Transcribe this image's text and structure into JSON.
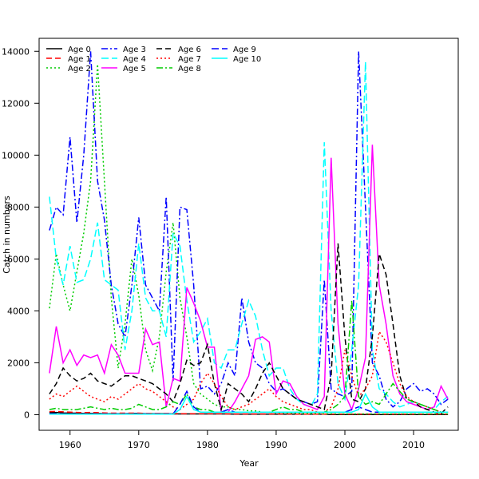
{
  "chart_data": {
    "type": "line",
    "xlabel": "Year",
    "ylabel": "Catch in numbers",
    "xlim": [
      1955.5,
      2016.5
    ],
    "ylim": [
      -600,
      14500
    ],
    "xticks": [
      1960,
      1970,
      1980,
      1990,
      2000,
      2010
    ],
    "yticks": [
      0,
      2000,
      4000,
      6000,
      8000,
      10000,
      12000,
      14000
    ],
    "legend_position": "top-left",
    "years": [
      1957,
      1958,
      1959,
      1960,
      1961,
      1962,
      1963,
      1964,
      1965,
      1966,
      1967,
      1968,
      1969,
      1970,
      1971,
      1972,
      1973,
      1974,
      1975,
      1976,
      1977,
      1978,
      1979,
      1980,
      1981,
      1982,
      1983,
      1984,
      1985,
      1986,
      1987,
      1988,
      1989,
      1990,
      1991,
      1992,
      1993,
      1994,
      1995,
      1996,
      1997,
      1998,
      1999,
      2000,
      2001,
      2002,
      2003,
      2004,
      2005,
      2006,
      2007,
      2008,
      2009,
      2010,
      2011,
      2012,
      2013,
      2014,
      2015
    ],
    "series": [
      {
        "name": "Age 0",
        "color": "#000000",
        "dash": "",
        "values": [
          80,
          90,
          70,
          60,
          60,
          50,
          50,
          50,
          40,
          40,
          40,
          40,
          50,
          50,
          40,
          40,
          40,
          40,
          30,
          30,
          30,
          30,
          30,
          30,
          30,
          30,
          30,
          20,
          20,
          20,
          20,
          20,
          20,
          20,
          20,
          20,
          20,
          20,
          20,
          20,
          20,
          10,
          10,
          10,
          10,
          10,
          10,
          10,
          10,
          10,
          10,
          10,
          10,
          10,
          10,
          10,
          10,
          10,
          10
        ]
      },
      {
        "name": "Age 1",
        "color": "#ff0000",
        "dash": "7,4",
        "values": [
          120,
          130,
          110,
          100,
          90,
          80,
          90,
          80,
          70,
          60,
          60,
          60,
          60,
          60,
          50,
          50,
          50,
          50,
          50,
          40,
          40,
          40,
          40,
          40,
          40,
          40,
          30,
          30,
          30,
          30,
          30,
          30,
          30,
          30,
          30,
          30,
          20,
          20,
          20,
          20,
          20,
          20,
          20,
          20,
          20,
          20,
          20,
          20,
          20,
          20,
          20,
          20,
          20,
          20,
          20,
          20,
          20,
          20,
          20
        ]
      },
      {
        "name": "Age 2",
        "color": "#00cc00",
        "dash": "2,3",
        "values": [
          4100,
          6200,
          5000,
          4000,
          5500,
          7000,
          9000,
          13500,
          9000,
          4500,
          1800,
          3500,
          6000,
          4600,
          2500,
          1700,
          3000,
          5500,
          7400,
          4500,
          3000,
          1200,
          800,
          600,
          400,
          300,
          300,
          200,
          200,
          150,
          150,
          100,
          100,
          80,
          80,
          60,
          60,
          50,
          50,
          50,
          40,
          40,
          30,
          30,
          30,
          30,
          30,
          30,
          30,
          30,
          30,
          30,
          30,
          30,
          30,
          30,
          30,
          30,
          30
        ]
      },
      {
        "name": "Age 3",
        "color": "#0000ff",
        "dash": "8,3,2,3",
        "values": [
          7100,
          8000,
          7700,
          10700,
          7400,
          10000,
          14000,
          9000,
          7500,
          5000,
          3500,
          3000,
          5000,
          7600,
          5000,
          4500,
          4000,
          8400,
          1300,
          8000,
          7900,
          5000,
          1000,
          1100,
          800,
          1200,
          2000,
          1500,
          4500,
          2800,
          2000,
          1800,
          1200,
          900,
          1000,
          800,
          600,
          500,
          400,
          500,
          5200,
          1000,
          800,
          700,
          900,
          14000,
          8000,
          2000,
          1500,
          600,
          300,
          500,
          1000,
          1200,
          900,
          1000,
          800,
          400,
          600
        ]
      },
      {
        "name": "Age 4",
        "color": "#00ffff",
        "dash": "9,4",
        "values": [
          8400,
          6000,
          5000,
          6500,
          5100,
          5200,
          6000,
          7400,
          5200,
          5000,
          4800,
          2500,
          4000,
          6600,
          4500,
          4000,
          4000,
          3000,
          7000,
          6500,
          4400,
          2800,
          3200,
          3700,
          2000,
          1800,
          2500,
          2500,
          3500,
          4400,
          3800,
          2500,
          1500,
          1800,
          1800,
          1000,
          600,
          400,
          300,
          800,
          10500,
          4000,
          1200,
          600,
          2500,
          5000,
          13600,
          2500,
          1000,
          800,
          500,
          300,
          400,
          500,
          400,
          300,
          200,
          500,
          700
        ]
      },
      {
        "name": "Age 5",
        "color": "#ff00ff",
        "dash": "",
        "values": [
          1600,
          3400,
          2000,
          2500,
          1900,
          2300,
          2200,
          2300,
          1600,
          2700,
          2300,
          1600,
          1600,
          1600,
          3300,
          2700,
          2800,
          300,
          1400,
          1300,
          4900,
          4300,
          3600,
          2600,
          2600,
          100,
          100,
          500,
          1000,
          1500,
          2900,
          3000,
          2800,
          800,
          1300,
          1200,
          700,
          400,
          300,
          200,
          700,
          9900,
          3500,
          800,
          200,
          1000,
          2200,
          10400,
          5000,
          3500,
          1500,
          800,
          500,
          400,
          300,
          200,
          300,
          1100,
          600
        ]
      },
      {
        "name": "Age 6",
        "color": "#000000",
        "dash": "7,4",
        "values": [
          800,
          1200,
          1800,
          1500,
          1300,
          1400,
          1600,
          1300,
          1200,
          1100,
          1300,
          1500,
          1500,
          1400,
          1300,
          1200,
          1000,
          800,
          500,
          1200,
          2100,
          1900,
          2000,
          2700,
          1200,
          200,
          1200,
          1000,
          800,
          500,
          1000,
          1600,
          2000,
          1500,
          1000,
          800,
          600,
          500,
          400,
          300,
          200,
          1500,
          6600,
          3000,
          600,
          500,
          1000,
          3000,
          6200,
          5400,
          3500,
          1500,
          600,
          500,
          300,
          200,
          100,
          50,
          300
        ]
      },
      {
        "name": "Age 7",
        "color": "#ff0000",
        "dash": "2,3",
        "values": [
          600,
          800,
          700,
          900,
          1100,
          900,
          700,
          600,
          500,
          700,
          600,
          800,
          1000,
          1200,
          1000,
          900,
          700,
          500,
          300,
          200,
          400,
          600,
          1200,
          1600,
          1200,
          700,
          300,
          200,
          300,
          400,
          600,
          800,
          1000,
          700,
          500,
          400,
          300,
          200,
          200,
          100,
          100,
          300,
          1000,
          2500,
          1500,
          700,
          1000,
          1500,
          3200,
          2800,
          2000,
          1200,
          700,
          500,
          400,
          300,
          200,
          100,
          100
        ]
      },
      {
        "name": "Age 8",
        "color": "#00cc00",
        "dash": "8,3,2,3",
        "values": [
          200,
          250,
          200,
          200,
          200,
          250,
          300,
          250,
          200,
          250,
          200,
          200,
          250,
          400,
          300,
          200,
          200,
          300,
          500,
          400,
          800,
          300,
          200,
          200,
          100,
          100,
          100,
          100,
          100,
          100,
          100,
          100,
          100,
          200,
          300,
          200,
          200,
          100,
          100,
          100,
          100,
          200,
          400,
          700,
          4400,
          700,
          400,
          500,
          400,
          800,
          1200,
          900,
          600,
          500,
          400,
          300,
          200,
          100,
          100
        ]
      },
      {
        "name": "Age 9",
        "color": "#0000ff",
        "dash": "9,4",
        "values": [
          40,
          40,
          30,
          30,
          30,
          30,
          30,
          30,
          30,
          30,
          30,
          30,
          30,
          30,
          30,
          30,
          30,
          30,
          30,
          400,
          900,
          300,
          100,
          100,
          100,
          100,
          200,
          100,
          100,
          100,
          100,
          100,
          100,
          100,
          100,
          100,
          100,
          100,
          100,
          100,
          100,
          100,
          100,
          100,
          200,
          300,
          200,
          100,
          100,
          100,
          100,
          100,
          100,
          100,
          100,
          100,
          100,
          100,
          100
        ]
      },
      {
        "name": "Age 10",
        "color": "#00ffff",
        "dash": "",
        "values": [
          20,
          20,
          20,
          20,
          20,
          20,
          20,
          20,
          20,
          20,
          20,
          20,
          20,
          20,
          20,
          20,
          20,
          20,
          20,
          200,
          700,
          200,
          100,
          100,
          100,
          100,
          100,
          100,
          100,
          100,
          100,
          100,
          100,
          100,
          100,
          100,
          100,
          100,
          100,
          100,
          100,
          100,
          100,
          100,
          100,
          200,
          800,
          300,
          100,
          100,
          100,
          100,
          100,
          100,
          100,
          100,
          100,
          100,
          100
        ]
      }
    ]
  }
}
